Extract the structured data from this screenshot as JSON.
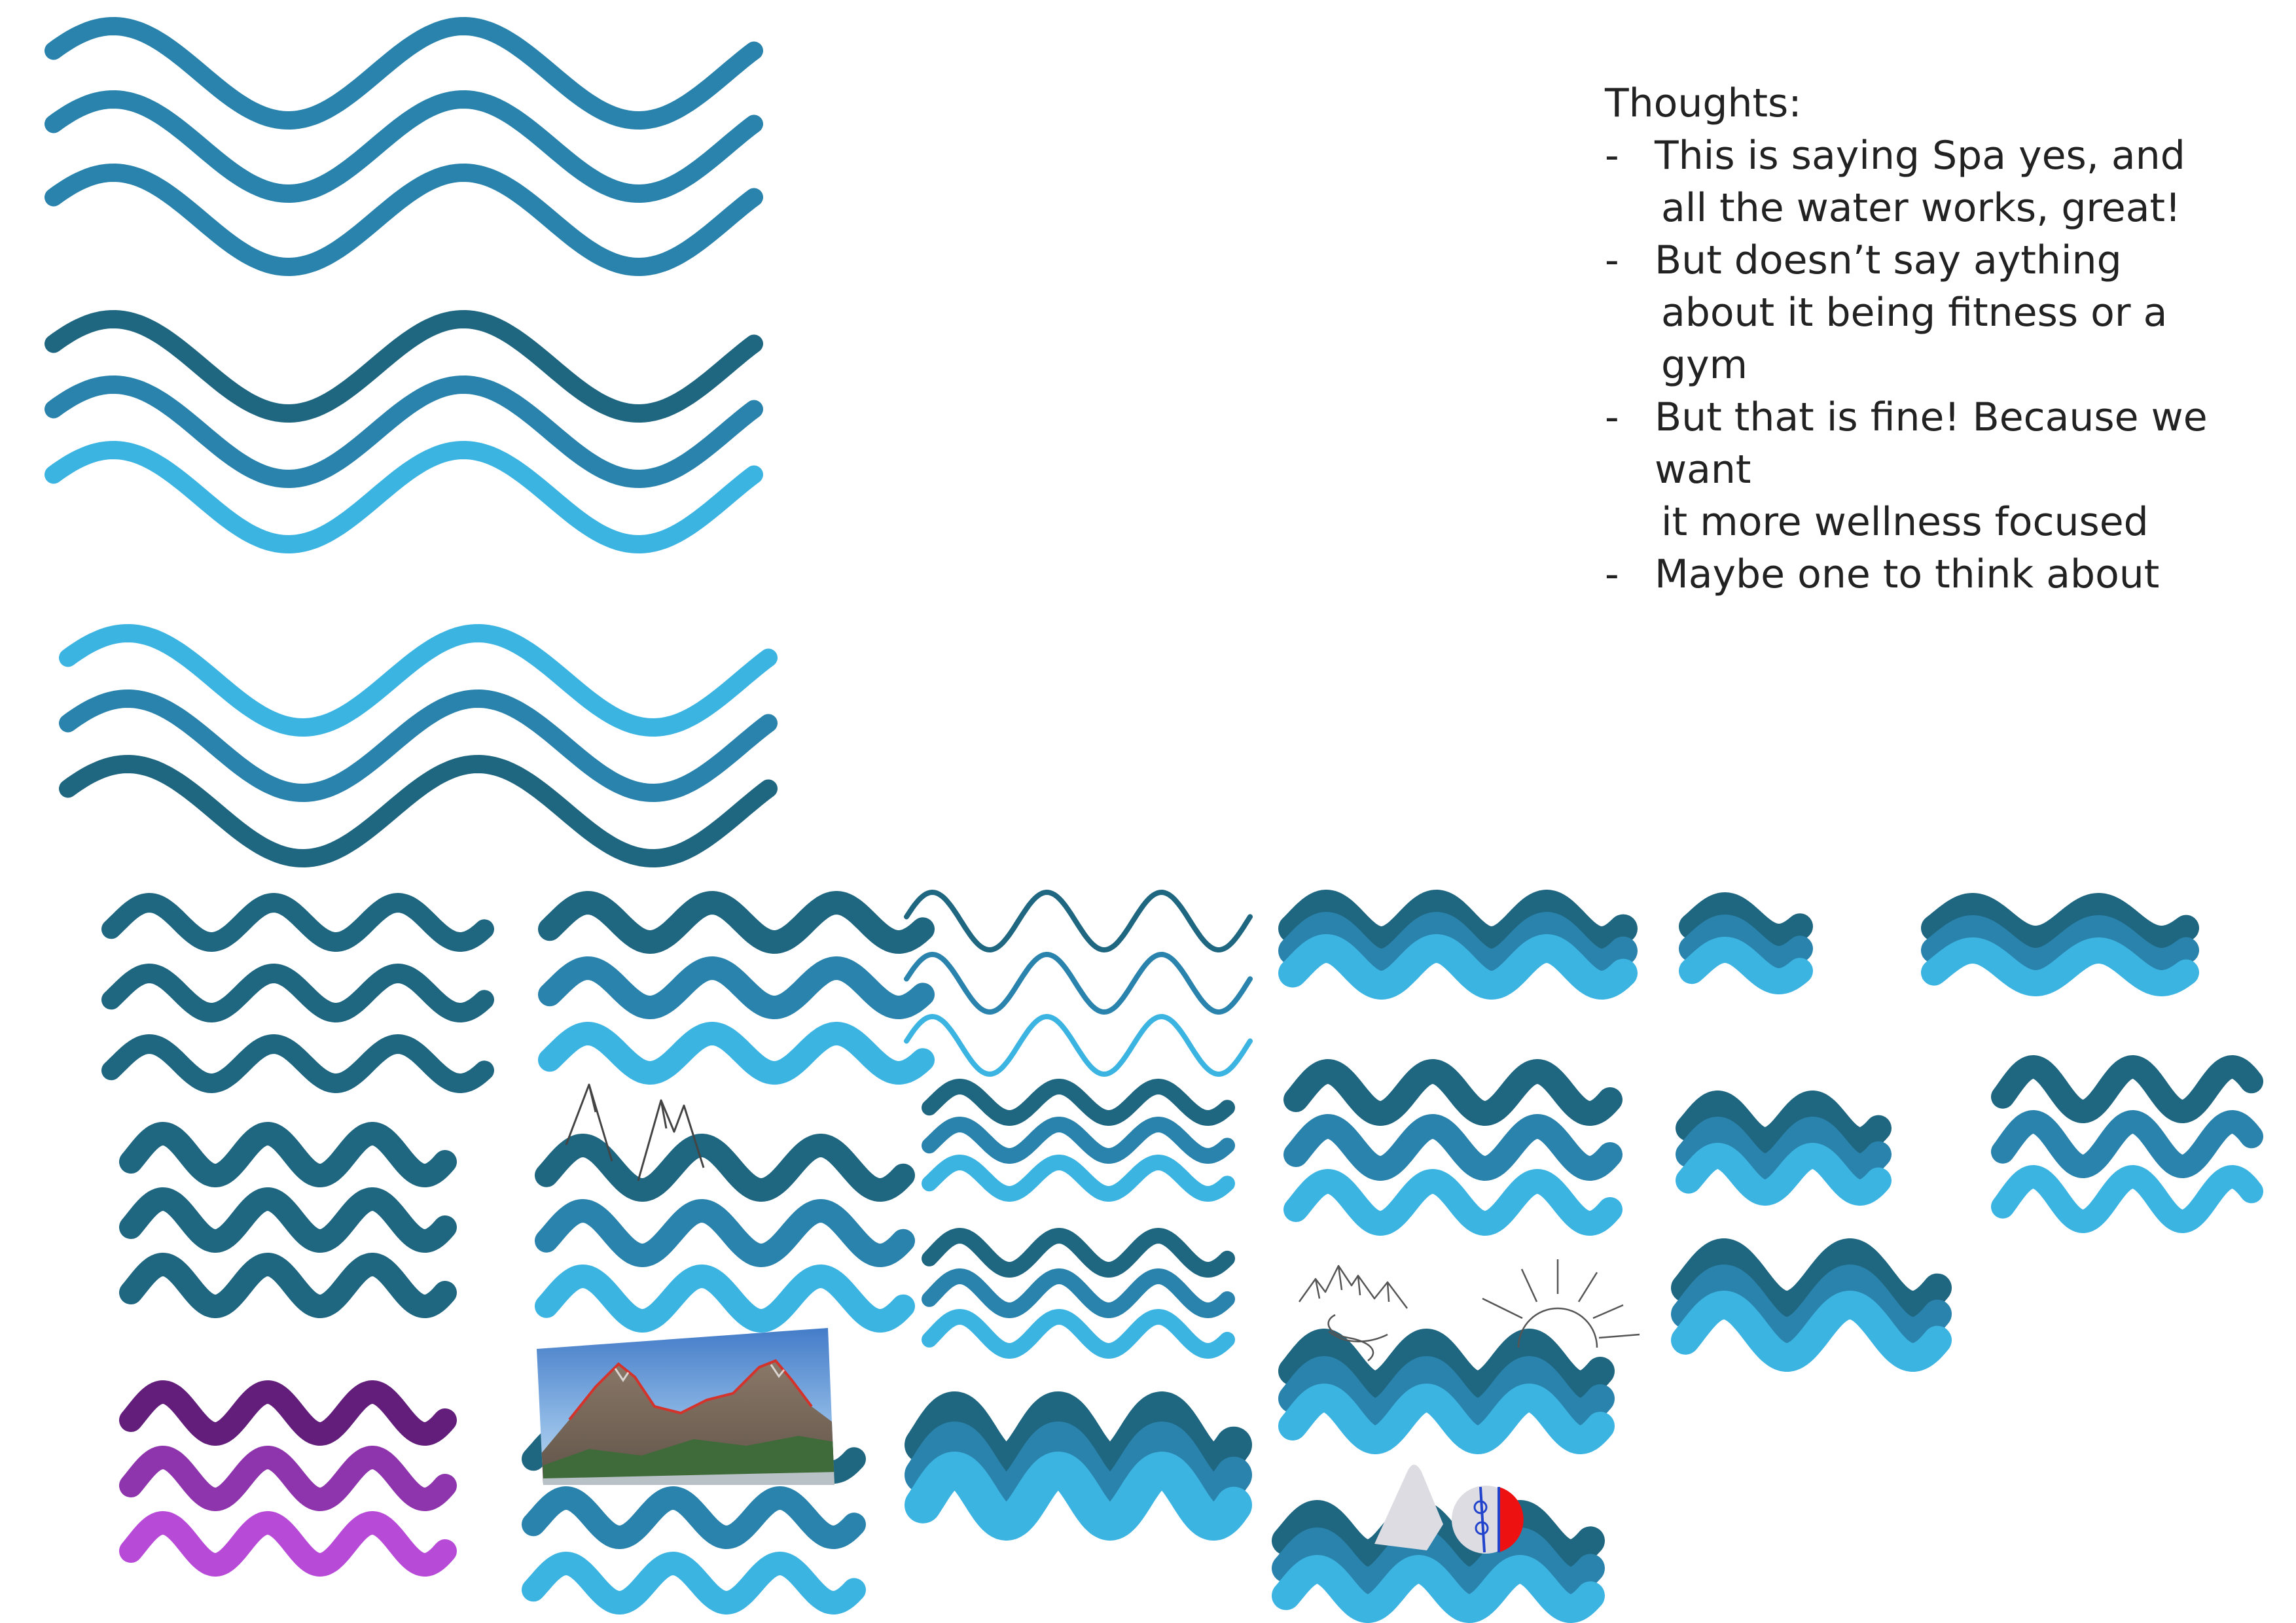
{
  "palette": {
    "dark_blue": "#1f6680",
    "mid_blue": "#2983ad",
    "light_blue": "#3cb4e2",
    "dark_purple": "#631d7b",
    "mid_purple": "#8e35ad",
    "light_purple": "#b84ad8",
    "mountain_outline": "#444444",
    "swimmer_cap_red": "#ee1111",
    "swimmer_goggle_blue": "#2244cc",
    "swimmer_body_grey": "#dcdce2"
  },
  "notes": {
    "title": "Thoughts:",
    "bullet_marker": "-",
    "items": [
      {
        "line1": "This is saying Spa yes, and",
        "line2": "all the water works, great!"
      },
      {
        "line1": "But doesn’t say aything",
        "line2": "about it being fitness or a gym"
      },
      {
        "line1": "But that is fine! Because we want",
        "line2": "it more wellness focused"
      },
      {
        "line1": "Maybe one to think about",
        "line2": ""
      }
    ]
  },
  "icons": [
    "large-waves-icon-uniform-mid-blue",
    "large-waves-icon-dark-to-light",
    "large-waves-icon-light-to-dark",
    "waves-icon-all-dark",
    "waves-icon-gradient-thick",
    "waves-icon-thin-lines",
    "waves-icon-stacked-overlap",
    "waves-icon-small-stacked",
    "waves-icon-all-dark-compact",
    "waves-icon-mountain-sketch",
    "waves-icon-medium-gradient",
    "waves-icon-purple",
    "waves-icon-mountain-photo",
    "waves-icon-sun-and-mountain",
    "waves-icon-swimmer"
  ]
}
